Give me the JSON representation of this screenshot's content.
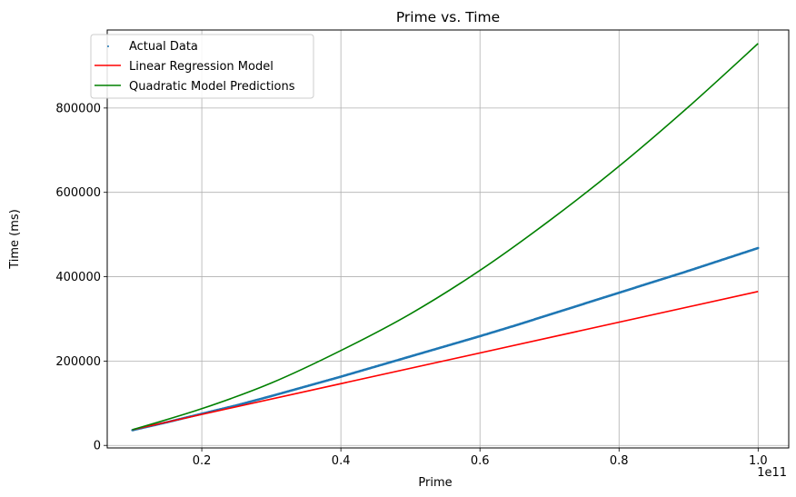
{
  "chart_data": {
    "type": "line",
    "title": "Prime vs. Time",
    "xlabel": "Prime",
    "ylabel": "Time (ms)",
    "x_offset_label": "1e11",
    "xlim": [
      0.064,
      1.044
    ],
    "ylim": [
      -6000,
      985000
    ],
    "xticks": [
      0.2,
      0.4,
      0.6,
      0.8,
      1.0
    ],
    "xtick_labels": [
      "0.2",
      "0.4",
      "0.6",
      "0.8",
      "1.0"
    ],
    "yticks": [
      0,
      200000,
      400000,
      600000,
      800000
    ],
    "ytick_labels": [
      "0",
      "200000",
      "400000",
      "600000",
      "800000"
    ],
    "grid": true,
    "legend_position": "top-left",
    "series": [
      {
        "name": "Actual Data",
        "kind": "scatter",
        "color": "#1f77b4",
        "x": [
          0.1,
          0.15,
          0.2,
          0.25,
          0.3,
          0.35,
          0.4,
          0.45,
          0.5,
          0.55,
          0.6,
          0.65,
          0.7,
          0.75,
          0.8,
          0.85,
          0.9,
          0.95,
          1.0
        ],
        "y": [
          36000,
          55000,
          75000,
          95000,
          117000,
          140000,
          163000,
          187000,
          211000,
          235000,
          259000,
          284000,
          310000,
          336000,
          362000,
          388000,
          414000,
          441000,
          468000
        ]
      },
      {
        "name": "Linear Regression Model",
        "kind": "line",
        "color": "#ff0000",
        "x": [
          0.1,
          1.0
        ],
        "y": [
          37000,
          365000
        ]
      },
      {
        "name": "Quadratic Model Predictions",
        "kind": "line",
        "color": "#008000",
        "x": [
          0.1,
          0.2,
          0.3,
          0.4,
          0.5,
          0.6,
          0.7,
          0.8,
          0.9,
          1.0
        ],
        "y": [
          37000,
          87000,
          148000,
          225000,
          312000,
          415000,
          533000,
          662000,
          803000,
          953000
        ]
      }
    ]
  }
}
